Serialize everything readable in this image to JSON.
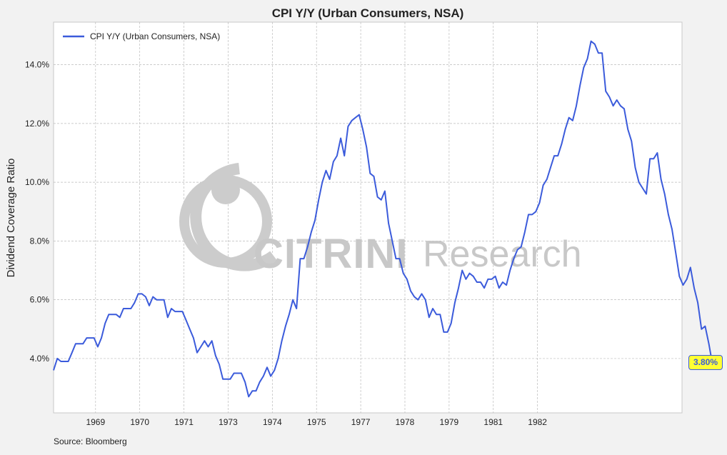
{
  "chart_data": {
    "type": "line",
    "title": "CPI Y/Y (Urban Consumers, NSA)",
    "xlabel": "",
    "ylabel": "Dividend Coverage Ratio",
    "xlim": [
      1968.2,
      1982.42
    ],
    "ylim": [
      2.15,
      15.45
    ],
    "yticks": [
      4,
      6,
      8,
      10,
      12,
      14
    ],
    "ytick_labels": [
      "4.0%",
      "6.0%",
      "8.0%",
      "10.0%",
      "12.0%",
      "14.0%"
    ],
    "xticks": [
      {
        "label": "1969",
        "pos": 1969.15
      },
      {
        "label": "1970",
        "pos": 1970.15
      },
      {
        "label": "1971",
        "pos": 1971.15
      },
      {
        "label": "1973",
        "pos": 1972.15
      },
      {
        "label": "1974",
        "pos": 1973.15
      },
      {
        "label": "1975",
        "pos": 1974.15
      },
      {
        "label": "1977",
        "pos": 1975.15
      },
      {
        "label": "1978",
        "pos": 1976.15
      },
      {
        "label": "1979",
        "pos": 1977.15
      },
      {
        "label": "1981",
        "pos": 1978.15
      },
      {
        "label": "1982",
        "pos": 1979.15
      }
    ],
    "grid": true,
    "legend_position": "top-left",
    "series": [
      {
        "name": "CPI Y/Y (Urban Consumers, NSA)",
        "color": "#3b5bdb",
        "x_start": 1968.2,
        "x_step": 0.0833,
        "values": [
          3.6,
          4.0,
          3.9,
          3.9,
          3.9,
          4.2,
          4.5,
          4.5,
          4.5,
          4.7,
          4.7,
          4.7,
          4.4,
          4.7,
          5.2,
          5.5,
          5.5,
          5.5,
          5.4,
          5.7,
          5.7,
          5.7,
          5.9,
          6.2,
          6.2,
          6.1,
          5.8,
          6.1,
          6.0,
          6.0,
          6.0,
          5.4,
          5.7,
          5.6,
          5.6,
          5.6,
          5.3,
          5.0,
          4.7,
          4.2,
          4.4,
          4.6,
          4.4,
          4.6,
          4.1,
          3.8,
          3.3,
          3.3,
          3.3,
          3.5,
          3.5,
          3.5,
          3.2,
          2.7,
          2.9,
          2.9,
          3.2,
          3.4,
          3.7,
          3.4,
          3.6,
          4.0,
          4.6,
          5.1,
          5.5,
          6.0,
          5.7,
          7.4,
          7.4,
          7.8,
          8.3,
          8.7,
          9.4,
          10.0,
          10.4,
          10.1,
          10.7,
          10.9,
          11.5,
          10.9,
          11.9,
          12.1,
          12.2,
          12.3,
          11.8,
          11.2,
          10.3,
          10.2,
          9.5,
          9.4,
          9.7,
          8.6,
          8.0,
          7.4,
          7.4,
          6.9,
          6.7,
          6.3,
          6.1,
          6.0,
          6.2,
          6.0,
          5.4,
          5.7,
          5.5,
          5.5,
          4.9,
          4.9,
          5.2,
          5.9,
          6.4,
          7.0,
          6.7,
          6.9,
          6.8,
          6.6,
          6.6,
          6.4,
          6.7,
          6.7,
          6.8,
          6.4,
          6.6,
          6.5,
          7.0,
          7.4,
          7.7,
          7.8,
          8.3,
          8.9,
          8.9,
          9.0,
          9.3,
          9.9,
          10.1,
          10.5,
          10.9,
          10.9,
          11.3,
          11.8,
          12.2,
          12.1,
          12.6,
          13.3,
          13.9,
          14.2,
          14.8,
          14.7,
          14.4,
          14.4,
          13.1,
          12.9,
          12.6,
          12.8,
          12.6,
          12.5,
          11.8,
          11.4,
          10.5,
          10.0,
          9.8,
          9.6,
          10.8,
          10.8,
          11.0,
          10.1,
          9.6,
          8.9,
          8.4,
          7.6,
          6.8,
          6.5,
          6.7,
          7.1,
          6.4,
          5.9,
          5.0,
          5.1,
          4.5,
          3.8
        ]
      }
    ],
    "last_value_label": "3.80%",
    "source": "Source: Bloomberg"
  },
  "watermark": {
    "brand_bold": "CITRINI",
    "brand_light": "Research"
  }
}
